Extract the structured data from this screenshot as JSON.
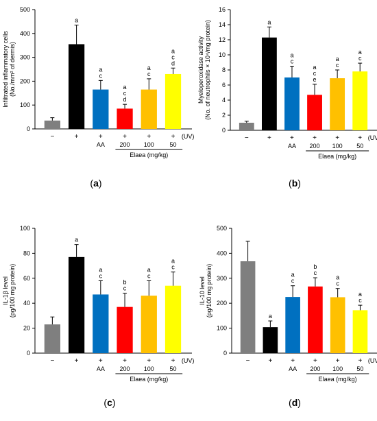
{
  "figure": {
    "condition_symbols": [
      "−",
      "+",
      "+",
      "+",
      "+",
      "+"
    ],
    "uv_label": "(UV)",
    "group_labels": [
      "",
      "",
      "AA",
      "200",
      "100",
      "50"
    ],
    "elaea_label": "Elaea (mg/kg)"
  },
  "chart_data": [
    {
      "type": "bar",
      "panel_label": "a",
      "ylabel": [
        "Infiltrated inflammatory cells",
        "(No./mm² of dermis)"
      ],
      "ylim": [
        0,
        500
      ],
      "yticks": [
        0,
        100,
        200,
        300,
        400,
        500
      ],
      "values": [
        35,
        355,
        165,
        85,
        165,
        230
      ],
      "errors": [
        12,
        80,
        38,
        18,
        45,
        25
      ],
      "colors": [
        "#7f7f7f",
        "#000000",
        "#0070c0",
        "#ff0000",
        "#ffc000",
        "#ffff00"
      ],
      "letters": [
        [],
        [
          "a"
        ],
        [
          "a",
          "c"
        ],
        [
          "a",
          "c",
          "d"
        ],
        [
          "a",
          "c"
        ],
        [
          "a",
          "c",
          "d"
        ]
      ]
    },
    {
      "type": "bar",
      "panel_label": "b",
      "ylabel": [
        "Myeloperoxidase activity",
        "(No. of neutrophils × 10⁴/mg protein)"
      ],
      "ylim": [
        0,
        16
      ],
      "yticks": [
        0,
        2,
        4,
        6,
        8,
        10,
        12,
        14,
        16
      ],
      "values": [
        1.0,
        12.3,
        7.0,
        4.7,
        6.9,
        7.8
      ],
      "errors": [
        0.2,
        1.4,
        1.5,
        1.4,
        1.1,
        1.1
      ],
      "colors": [
        "#7f7f7f",
        "#000000",
        "#0070c0",
        "#ff0000",
        "#ffc000",
        "#ffff00"
      ],
      "letters": [
        [],
        [
          "a"
        ],
        [
          "a",
          "c"
        ],
        [
          "a",
          "c",
          "e"
        ],
        [
          "a",
          "c"
        ],
        [
          "a",
          "c"
        ]
      ]
    },
    {
      "type": "bar",
      "panel_label": "c",
      "ylabel": [
        "IL-1β level",
        "(pg/100 mg protein)"
      ],
      "ylim": [
        0,
        100
      ],
      "yticks": [
        0,
        20,
        40,
        60,
        80,
        100
      ],
      "values": [
        23,
        77,
        47,
        37,
        46,
        54
      ],
      "errors": [
        6,
        10,
        11,
        11,
        12,
        11
      ],
      "colors": [
        "#7f7f7f",
        "#000000",
        "#0070c0",
        "#ff0000",
        "#ffc000",
        "#ffff00"
      ],
      "letters": [
        [],
        [
          "a"
        ],
        [
          "a",
          "c"
        ],
        [
          "b",
          "c"
        ],
        [
          "a",
          "c"
        ],
        [
          "a",
          "c"
        ]
      ]
    },
    {
      "type": "bar",
      "panel_label": "d",
      "ylabel": [
        "IL-10 level",
        "(pg/100 mg protein)"
      ],
      "ylim": [
        0,
        500
      ],
      "yticks": [
        0,
        100,
        200,
        300,
        400,
        500
      ],
      "values": [
        368,
        104,
        225,
        267,
        224,
        172
      ],
      "errors": [
        80,
        25,
        45,
        35,
        35,
        20
      ],
      "colors": [
        "#7f7f7f",
        "#000000",
        "#0070c0",
        "#ff0000",
        "#ffc000",
        "#ffff00"
      ],
      "letters": [
        [],
        [
          "a"
        ],
        [
          "a",
          "c"
        ],
        [
          "b",
          "c"
        ],
        [
          "a",
          "c"
        ],
        [
          "a",
          "c"
        ]
      ]
    }
  ]
}
